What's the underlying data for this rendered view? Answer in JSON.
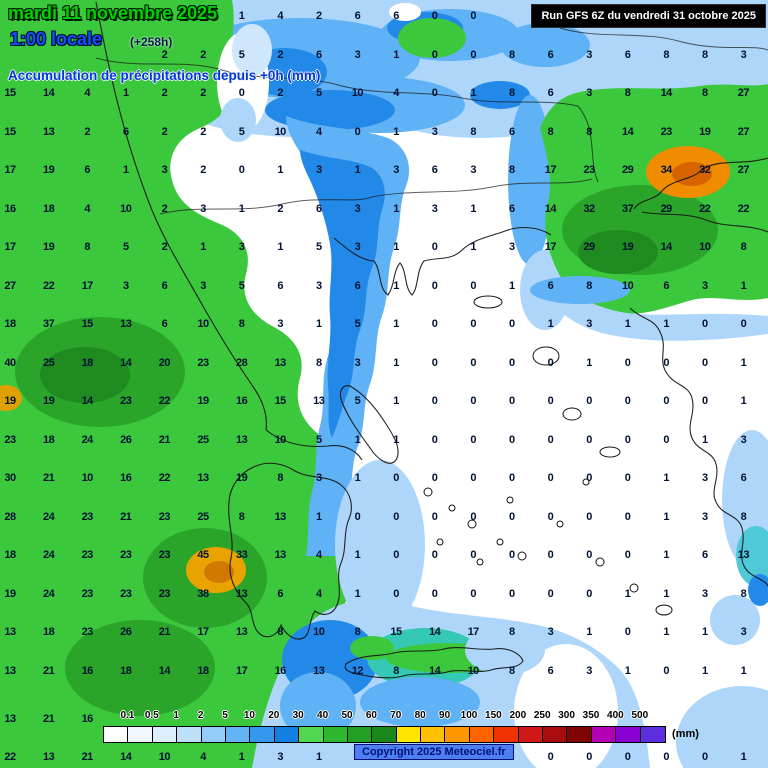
{
  "header": {
    "date_line": "mardi 11 novembre 2025",
    "time_line": "1:00 locale",
    "offset_label": "(+258h)",
    "subtitle": "Accumulation de précipitations depuis +0h (mm)",
    "run_info": "Run GFS 6Z du vendredi 31 octobre 2025"
  },
  "footer": {
    "copyright": "Copyright 2025 Meteociel.fr"
  },
  "legend": {
    "unit": "(mm)",
    "values": [
      "0.1",
      "0.5",
      "1",
      "2",
      "5",
      "10",
      "20",
      "30",
      "40",
      "50",
      "60",
      "70",
      "80",
      "90",
      "100",
      "150",
      "200",
      "250",
      "300",
      "350",
      "400",
      "500"
    ],
    "colors": [
      "#ffffff",
      "#f2f6ff",
      "#dcedfe",
      "#bcdffc",
      "#93cbf9",
      "#63b3f5",
      "#3398ee",
      "#1280e2",
      "#50d850",
      "#2db82d",
      "#22a022",
      "#1a871a",
      "#ffe400",
      "#ffc000",
      "#ff9600",
      "#ff6400",
      "#f03200",
      "#d01818",
      "#a80c0c",
      "#800404",
      "#b400b4",
      "#8a00d2",
      "#5c2ee0"
    ]
  },
  "palette": {
    "land_green": "#3cc83c",
    "dark_green": "#2aa52a",
    "deep_blue": "#2389e9",
    "light_blue": "#aed6fb",
    "orange": "#f08c00"
  },
  "grid": {
    "values": [
      [
        "",
        "",
        "",
        "",
        "",
        "",
        "1",
        "4",
        "2",
        "6",
        "6",
        "0",
        "0",
        "",
        "",
        "",
        "",
        "",
        "",
        ""
      ],
      [
        "",
        "",
        "",
        "",
        "2",
        "2",
        "5",
        "2",
        "6",
        "3",
        "1",
        "0",
        "0",
        "8",
        "6",
        "3",
        "6",
        "8",
        "8",
        "3"
      ],
      [
        "15",
        "14",
        "4",
        "1",
        "2",
        "2",
        "0",
        "2",
        "5",
        "10",
        "4",
        "0",
        "1",
        "8",
        "6",
        "3",
        "8",
        "14",
        "8",
        "27"
      ],
      [
        "15",
        "13",
        "2",
        "6",
        "2",
        "2",
        "5",
        "10",
        "4",
        "0",
        "1",
        "3",
        "8",
        "6",
        "8",
        "8",
        "14",
        "23",
        "19",
        "27"
      ],
      [
        "17",
        "19",
        "6",
        "1",
        "3",
        "2",
        "0",
        "1",
        "3",
        "1",
        "3",
        "6",
        "3",
        "8",
        "17",
        "23",
        "29",
        "34",
        "32",
        "27"
      ],
      [
        "16",
        "18",
        "4",
        "10",
        "2",
        "3",
        "1",
        "2",
        "6",
        "3",
        "1",
        "3",
        "1",
        "6",
        "14",
        "32",
        "37",
        "29",
        "22",
        "22"
      ],
      [
        "17",
        "19",
        "8",
        "5",
        "2",
        "1",
        "3",
        "1",
        "5",
        "3",
        "1",
        "0",
        "1",
        "3",
        "17",
        "29",
        "19",
        "14",
        "10",
        "8"
      ],
      [
        "27",
        "22",
        "17",
        "3",
        "6",
        "3",
        "5",
        "6",
        "3",
        "6",
        "1",
        "0",
        "0",
        "1",
        "6",
        "8",
        "10",
        "6",
        "3",
        "1"
      ],
      [
        "18",
        "37",
        "15",
        "13",
        "6",
        "10",
        "8",
        "3",
        "1",
        "5",
        "1",
        "0",
        "0",
        "0",
        "1",
        "3",
        "1",
        "1",
        "0",
        "0"
      ],
      [
        "40",
        "25",
        "18",
        "14",
        "20",
        "23",
        "28",
        "13",
        "8",
        "3",
        "1",
        "0",
        "0",
        "0",
        "0",
        "1",
        "0",
        "0",
        "0",
        "1"
      ],
      [
        "19",
        "19",
        "14",
        "23",
        "22",
        "19",
        "16",
        "15",
        "13",
        "5",
        "1",
        "0",
        "0",
        "0",
        "0",
        "0",
        "0",
        "0",
        "0",
        "1"
      ],
      [
        "23",
        "18",
        "24",
        "26",
        "21",
        "25",
        "13",
        "10",
        "5",
        "1",
        "1",
        "0",
        "0",
        "0",
        "0",
        "0",
        "0",
        "0",
        "1",
        "3"
      ],
      [
        "30",
        "21",
        "10",
        "16",
        "22",
        "13",
        "19",
        "8",
        "3",
        "1",
        "0",
        "0",
        "0",
        "0",
        "0",
        "0",
        "0",
        "1",
        "3",
        "6"
      ],
      [
        "28",
        "24",
        "23",
        "21",
        "23",
        "25",
        "8",
        "13",
        "1",
        "0",
        "0",
        "0",
        "0",
        "0",
        "0",
        "0",
        "0",
        "1",
        "3",
        "8"
      ],
      [
        "18",
        "24",
        "23",
        "23",
        "23",
        "45",
        "33",
        "13",
        "4",
        "1",
        "0",
        "0",
        "0",
        "0",
        "0",
        "0",
        "0",
        "1",
        "6",
        "13"
      ],
      [
        "19",
        "24",
        "23",
        "23",
        "23",
        "38",
        "13",
        "6",
        "4",
        "1",
        "0",
        "0",
        "0",
        "0",
        "0",
        "0",
        "1",
        "1",
        "3",
        "8"
      ],
      [
        "13",
        "18",
        "23",
        "26",
        "21",
        "17",
        "13",
        "8",
        "10",
        "8",
        "15",
        "14",
        "17",
        "8",
        "3",
        "1",
        "0",
        "1",
        "1",
        "3"
      ],
      [
        "13",
        "21",
        "16",
        "18",
        "14",
        "18",
        "17",
        "16",
        "13",
        "12",
        "8",
        "14",
        "10",
        "8",
        "6",
        "3",
        "1",
        "0",
        "1",
        "1"
      ],
      [
        "13",
        "21",
        "16",
        "",
        "",
        "",
        "",
        "",
        "",
        "",
        "",
        "",
        "",
        "",
        "",
        "",
        "",
        "",
        "",
        ""
      ],
      [
        "22",
        "13",
        "21",
        "14",
        "10",
        "4",
        "1",
        "3",
        "1",
        "",
        "",
        "",
        "",
        "",
        "0",
        "0",
        "0",
        "0",
        "0",
        "1"
      ]
    ]
  }
}
